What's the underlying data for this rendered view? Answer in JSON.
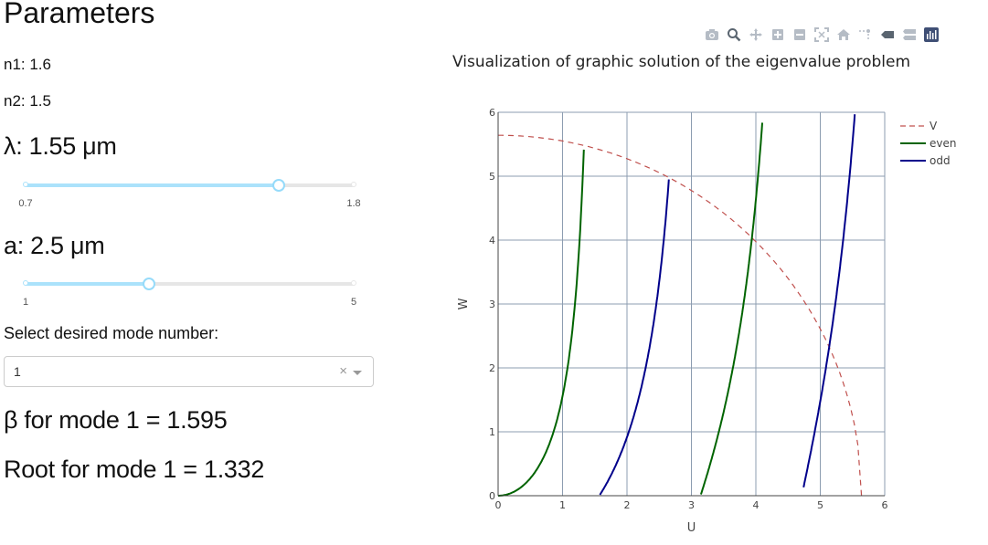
{
  "panel": {
    "title": "Parameters",
    "n1_text": "n1: 1.6",
    "n2_text": "n2: 1.5",
    "lambda_text": "λ: 1.55 μm",
    "lambda_slider": {
      "min": 0.7,
      "max": 1.8,
      "value": 1.55,
      "min_label": "0.7",
      "max_label": "1.8"
    },
    "a_text": "a: 2.5 μm",
    "a_slider": {
      "min": 1,
      "max": 5,
      "value": 2.5,
      "min_label": "1",
      "max_label": "5"
    },
    "select_label": "Select desired mode number:",
    "select_value": "1",
    "select_clear": "×",
    "beta_text": "β for mode 1 = 1.595",
    "root_text": "Root for mode 1 = 1.332"
  },
  "modebar": {
    "icons": [
      "camera-icon",
      "zoom-icon",
      "pan-icon",
      "zoom-in-icon",
      "zoom-out-icon",
      "autoscale-icon",
      "home-icon",
      "spike-lines-icon",
      "hover-closest-icon",
      "hover-compare-icon",
      "plotly-logo-icon"
    ]
  },
  "chart_data": {
    "type": "line",
    "title": "Visualization of graphic solution of the eigenvalue problem",
    "xlabel": "U",
    "ylabel": "W",
    "xlim": [
      0,
      6
    ],
    "ylim": [
      0,
      6
    ],
    "x_ticks": [
      "0",
      "1",
      "2",
      "3",
      "4",
      "5",
      "6"
    ],
    "y_ticks": [
      "0",
      "1",
      "2",
      "3",
      "4",
      "5",
      "6"
    ],
    "grid": true,
    "legend_position": "top-right",
    "colors": {
      "V": "#c0504d",
      "even": "#006400",
      "odd": "#00008b",
      "grid": "#8c9cb0"
    },
    "series": [
      {
        "name": "V",
        "style": "dash",
        "circle_radius": 5.64
      },
      {
        "name": "even",
        "style": "solid",
        "function": "u*tan(u)",
        "branches": [
          [
            0,
            1.33
          ],
          [
            3.14,
            4.1
          ]
        ]
      },
      {
        "name": "odd",
        "style": "solid",
        "function": "-u*cot(u)",
        "branches": [
          [
            1.58,
            2.65
          ],
          [
            4.74,
            5.57
          ]
        ]
      }
    ]
  }
}
